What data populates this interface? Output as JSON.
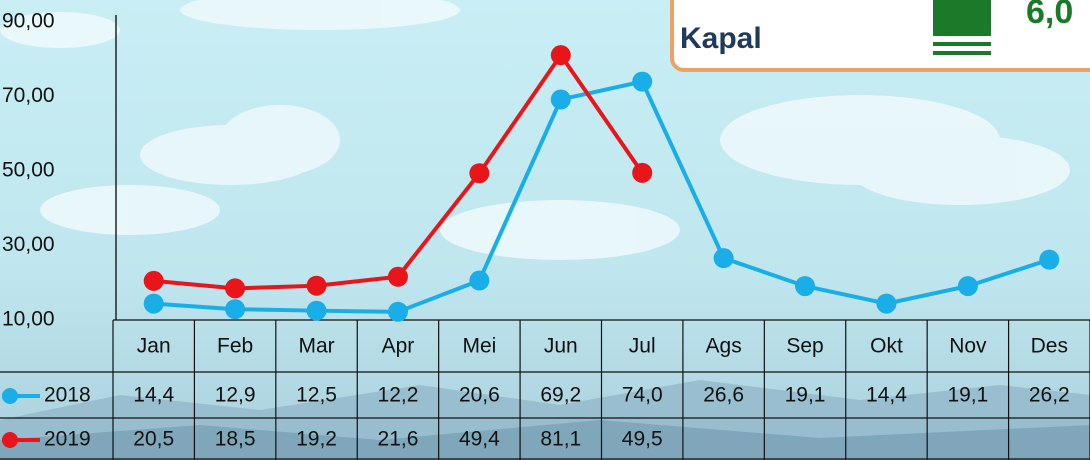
{
  "chart_data": {
    "type": "line",
    "categories": [
      "Jan",
      "Feb",
      "Mar",
      "Apr",
      "Mei",
      "Jun",
      "Jul",
      "Ags",
      "Sep",
      "Okt",
      "Nov",
      "Des"
    ],
    "series": [
      {
        "name": "2018",
        "color": "#19aee8",
        "values": [
          14.4,
          12.9,
          12.5,
          12.2,
          20.6,
          69.2,
          74.0,
          26.6,
          19.1,
          14.4,
          19.1,
          26.2
        ],
        "value_labels": [
          "14,4",
          "12,9",
          "12,5",
          "12,2",
          "20,6",
          "69,2",
          "74,0",
          "26,6",
          "19,1",
          "14,4",
          "19,1",
          "26,2"
        ]
      },
      {
        "name": "2019",
        "color": "#e8161b",
        "values": [
          20.5,
          18.5,
          19.2,
          21.6,
          49.4,
          81.1,
          49.5,
          null,
          null,
          null,
          null,
          null
        ],
        "value_labels": [
          "20,5",
          "18,5",
          "19,2",
          "21,6",
          "49,4",
          "81,1",
          "49,5",
          null,
          null,
          null,
          null,
          null
        ]
      }
    ],
    "ylim": [
      10,
      90
    ],
    "yticks": [
      {
        "value": 10,
        "label": "10,00"
      },
      {
        "value": 30,
        "label": "30,00"
      },
      {
        "value": 50,
        "label": "50,00"
      },
      {
        "value": 70,
        "label": "70,00"
      },
      {
        "value": 90,
        "label": "90,00"
      }
    ],
    "data_table": true
  },
  "info_box": {
    "label": "Kapal",
    "value": "6,0"
  }
}
